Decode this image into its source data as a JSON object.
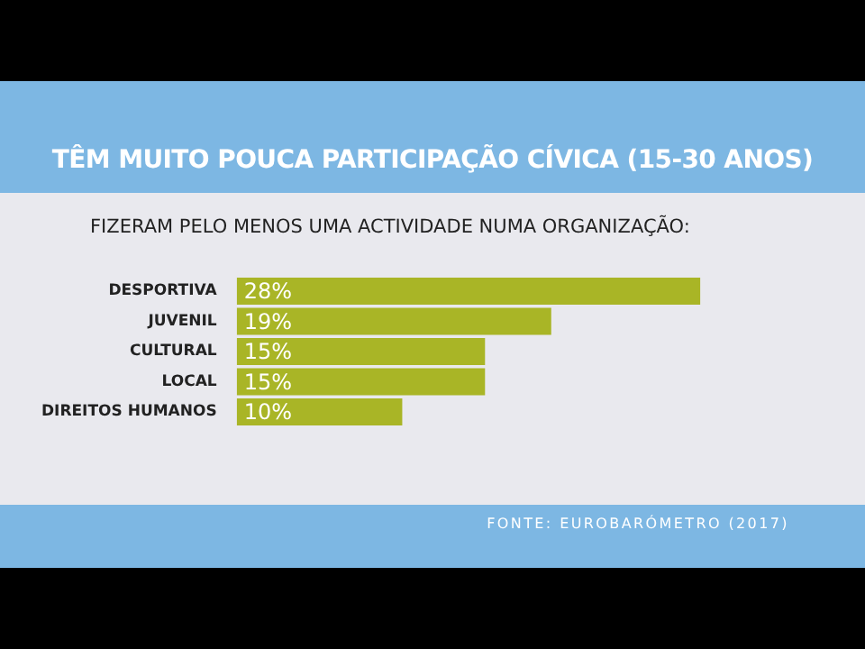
{
  "chart_data": {
    "type": "bar",
    "orientation": "horizontal",
    "title": "TÊM MUITO POUCA PARTICIPAÇÃO CÍVICA (15-30 ANOS)",
    "subtitle": "FIZERAM PELO MENOS UMA ACTIVIDADE NUMA ORGANIZAÇÃO:",
    "categories": [
      "DESPORTIVA",
      "JUVENIL",
      "CULTURAL",
      "LOCAL",
      "DIREITOS HUMANOS"
    ],
    "values": [
      28,
      19,
      15,
      15,
      10
    ],
    "color": "#a9b526",
    "data_labels": true,
    "value_labels": [
      "28%",
      "19%",
      "15%",
      "15%",
      "10%"
    ],
    "annotations": [
      "FONTE: EUROBARÓMETRO (2017)"
    ]
  }
}
